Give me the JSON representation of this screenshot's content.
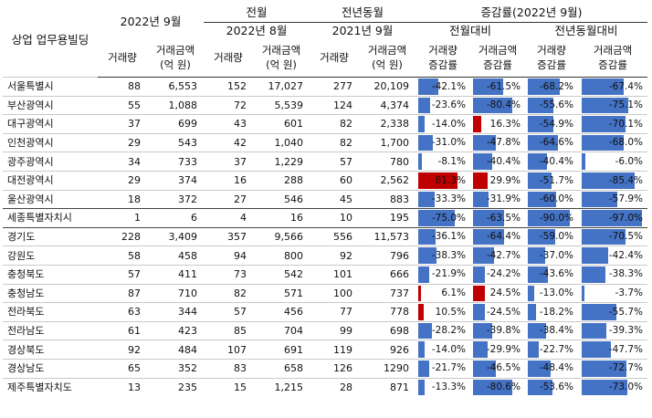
{
  "header": {
    "row_label": "상업 업무용빌딩",
    "period_current": "2022년 9월",
    "prev_month": "전월",
    "prev_month_period": "2022년 8월",
    "prev_year": "전년동월",
    "prev_year_period": "2021년 9월",
    "change": "증감률(2022년 9월)",
    "mom": "전월대비",
    "yoy": "전년동월대비",
    "vol": "거래량",
    "amt_line1": "거래금액",
    "amt_line2": "(억 원)",
    "vol_change_line1": "거래량",
    "vol_change_line2": "증감률",
    "amt_change_line1": "거래금액",
    "amt_change_line2": "증감률"
  },
  "colors": {
    "negative_bar": "#4472c4",
    "positive_bar": "#c00000"
  },
  "rows": [
    {
      "region": "서울특별시",
      "cur_vol": "88",
      "cur_amt": "6,553",
      "pm_vol": "152",
      "pm_amt": "17,027",
      "py_vol": "277",
      "py_amt": "20,109",
      "mom_vol": -42.1,
      "mom_amt": -61.5,
      "yoy_vol": -68.2,
      "yoy_amt": -67.4
    },
    {
      "region": "부산광역시",
      "cur_vol": "55",
      "cur_amt": "1,088",
      "pm_vol": "72",
      "pm_amt": "5,539",
      "py_vol": "124",
      "py_amt": "4,374",
      "mom_vol": -23.6,
      "mom_amt": -80.4,
      "yoy_vol": -55.6,
      "yoy_amt": -75.1
    },
    {
      "region": "대구광역시",
      "cur_vol": "37",
      "cur_amt": "699",
      "pm_vol": "43",
      "pm_amt": "601",
      "py_vol": "82",
      "py_amt": "2,338",
      "mom_vol": -14.0,
      "mom_amt": 16.3,
      "yoy_vol": -54.9,
      "yoy_amt": -70.1
    },
    {
      "region": "인천광역시",
      "cur_vol": "29",
      "cur_amt": "543",
      "pm_vol": "42",
      "pm_amt": "1,040",
      "py_vol": "82",
      "py_amt": "1,700",
      "mom_vol": -31.0,
      "mom_amt": -47.8,
      "yoy_vol": -64.6,
      "yoy_amt": -68.0
    },
    {
      "region": "광주광역시",
      "cur_vol": "34",
      "cur_amt": "733",
      "pm_vol": "37",
      "pm_amt": "1,229",
      "py_vol": "57",
      "py_amt": "780",
      "mom_vol": -8.1,
      "mom_amt": -40.4,
      "yoy_vol": -40.4,
      "yoy_amt": -6.0
    },
    {
      "region": "대전광역시",
      "cur_vol": "29",
      "cur_amt": "374",
      "pm_vol": "16",
      "pm_amt": "288",
      "py_vol": "60",
      "py_amt": "2,562",
      "mom_vol": 81.3,
      "mom_amt": 29.9,
      "yoy_vol": -51.7,
      "yoy_amt": -85.4
    },
    {
      "region": "울산광역시",
      "cur_vol": "18",
      "cur_amt": "372",
      "pm_vol": "27",
      "pm_amt": "546",
      "py_vol": "45",
      "py_amt": "883",
      "mom_vol": -33.3,
      "mom_amt": -31.9,
      "yoy_vol": -60.0,
      "yoy_amt": -57.9
    },
    {
      "region": "세종특별자치시",
      "cur_vol": "1",
      "cur_amt": "6",
      "pm_vol": "4",
      "pm_amt": "16",
      "py_vol": "10",
      "py_amt": "195",
      "mom_vol": -75.0,
      "mom_amt": -63.5,
      "yoy_vol": -90.0,
      "yoy_amt": -97.0
    },
    {
      "region": "경기도",
      "cur_vol": "228",
      "cur_amt": "3,409",
      "pm_vol": "357",
      "pm_amt": "9,566",
      "py_vol": "556",
      "py_amt": "11,573",
      "mom_vol": -36.1,
      "mom_amt": -64.4,
      "yoy_vol": -59.0,
      "yoy_amt": -70.5
    },
    {
      "region": "강원도",
      "cur_vol": "58",
      "cur_amt": "458",
      "pm_vol": "94",
      "pm_amt": "800",
      "py_vol": "92",
      "py_amt": "796",
      "mom_vol": -38.3,
      "mom_amt": -42.7,
      "yoy_vol": -37.0,
      "yoy_amt": -42.4
    },
    {
      "region": "충청북도",
      "cur_vol": "57",
      "cur_amt": "411",
      "pm_vol": "73",
      "pm_amt": "542",
      "py_vol": "101",
      "py_amt": "666",
      "mom_vol": -21.9,
      "mom_amt": -24.2,
      "yoy_vol": -43.6,
      "yoy_amt": -38.3
    },
    {
      "region": "충청남도",
      "cur_vol": "87",
      "cur_amt": "710",
      "pm_vol": "82",
      "pm_amt": "571",
      "py_vol": "100",
      "py_amt": "737",
      "mom_vol": 6.1,
      "mom_amt": 24.5,
      "yoy_vol": -13.0,
      "yoy_amt": -3.7
    },
    {
      "region": "전라북도",
      "cur_vol": "63",
      "cur_amt": "344",
      "pm_vol": "57",
      "pm_amt": "456",
      "py_vol": "77",
      "py_amt": "778",
      "mom_vol": 10.5,
      "mom_amt": -24.5,
      "yoy_vol": -18.2,
      "yoy_amt": -55.7
    },
    {
      "region": "전라남도",
      "cur_vol": "61",
      "cur_amt": "423",
      "pm_vol": "85",
      "pm_amt": "704",
      "py_vol": "99",
      "py_amt": "698",
      "mom_vol": -28.2,
      "mom_amt": -39.8,
      "yoy_vol": -38.4,
      "yoy_amt": -39.3
    },
    {
      "region": "경상북도",
      "cur_vol": "92",
      "cur_amt": "484",
      "pm_vol": "107",
      "pm_amt": "691",
      "py_vol": "119",
      "py_amt": "926",
      "mom_vol": -14.0,
      "mom_amt": -29.9,
      "yoy_vol": -22.7,
      "yoy_amt": -47.7
    },
    {
      "region": "경상남도",
      "cur_vol": "65",
      "cur_amt": "352",
      "pm_vol": "83",
      "pm_amt": "658",
      "py_vol": "126",
      "py_amt": "1290",
      "mom_vol": -21.7,
      "mom_amt": -46.5,
      "yoy_vol": -48.4,
      "yoy_amt": -72.7
    },
    {
      "region": "제주특별자치도",
      "cur_vol": "13",
      "cur_amt": "235",
      "pm_vol": "15",
      "pm_amt": "1,215",
      "py_vol": "28",
      "py_amt": "871",
      "mom_vol": -13.3,
      "mom_amt": -80.6,
      "yoy_vol": -53.6,
      "yoy_amt": -73.0
    }
  ]
}
